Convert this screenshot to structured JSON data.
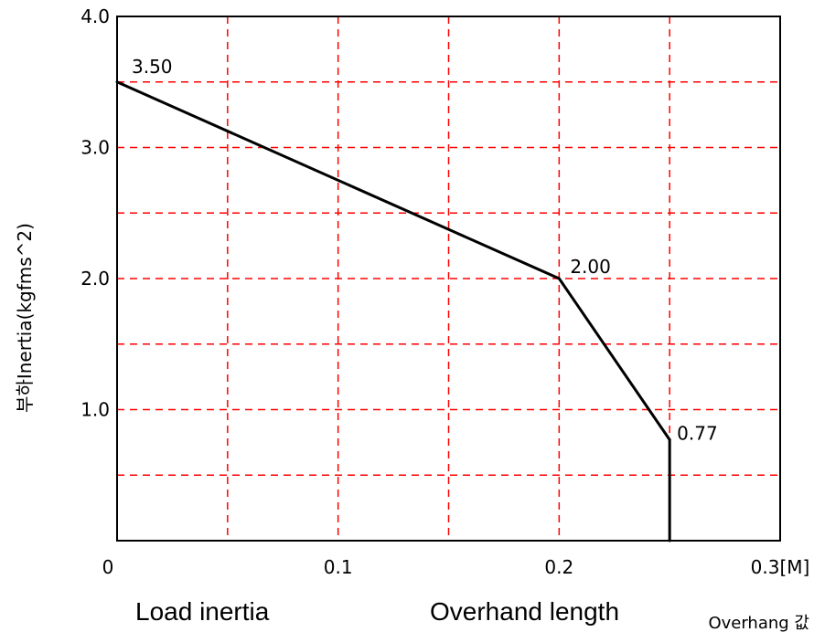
{
  "chart_data": {
    "type": "line",
    "ylabel": "부하Inertia(kgfms^2)",
    "xlabel": "Overhang 값",
    "xlim": [
      0,
      0.3
    ],
    "ylim": [
      0,
      4.0
    ],
    "x_ticks": [
      "0",
      "0.1",
      "0.2",
      "0.3[M]"
    ],
    "y_ticks": [
      "1.0",
      "2.0",
      "3.0",
      "4.0"
    ],
    "grid": true,
    "series": [
      {
        "x": [
          0,
          0.2,
          0.25,
          0.25
        ],
        "y": [
          3.5,
          2.0,
          0.77,
          0
        ],
        "color": "#000000"
      }
    ],
    "data_labels": [
      {
        "x": 0,
        "y": 3.5,
        "text": "3.50"
      },
      {
        "x": 0.2,
        "y": 2.0,
        "text": "2.00"
      },
      {
        "x": 0.25,
        "y": 0.77,
        "text": "0.77"
      }
    ],
    "grid_color": "#ff0000"
  },
  "captions": {
    "left": "Load inertia",
    "right": "Overhand length"
  }
}
